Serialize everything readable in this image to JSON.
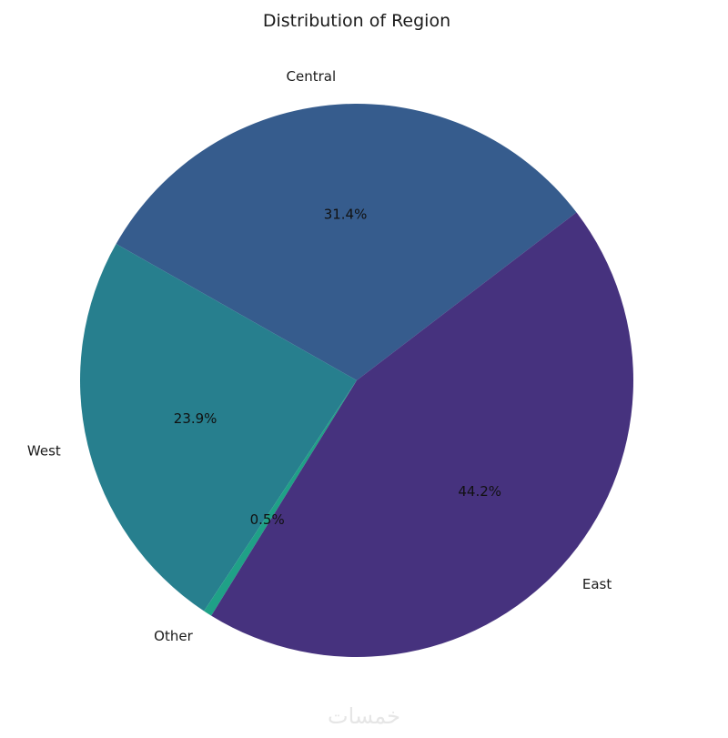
{
  "chart_data": {
    "type": "pie",
    "title": "Distribution of Region",
    "slices": [
      {
        "label": "Central",
        "value": 31.4,
        "pct_label": "31.4%",
        "color": "#365c8d"
      },
      {
        "label": "West",
        "value": 23.9,
        "pct_label": "23.9%",
        "color": "#277f8e"
      },
      {
        "label": "Other",
        "value": 0.5,
        "pct_label": "0.5%",
        "color": "#1fa187"
      },
      {
        "label": "East",
        "value": 44.2,
        "pct_label": "44.2%",
        "color": "#46327e"
      }
    ],
    "legend": "none"
  },
  "watermark": {
    "text": "خمسات",
    "color": "#e6e6e6"
  }
}
